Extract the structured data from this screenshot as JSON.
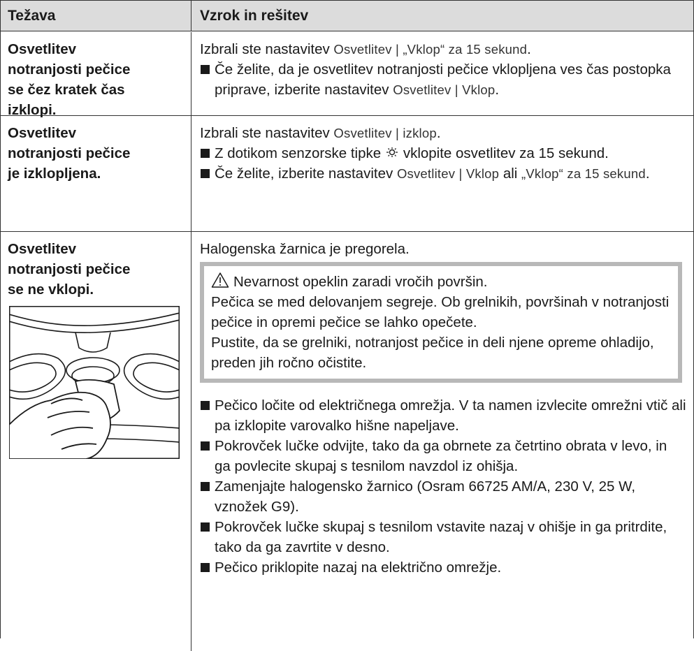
{
  "header": {
    "problem": "Težava",
    "solution": "Vzrok in rešitev"
  },
  "rows": [
    {
      "problem": [
        "Osvetlitev",
        "notranjosti pečice",
        "se čez kratek čas",
        "izklopi."
      ],
      "cause": [
        "Izbrali ste nastavitev ",
        "Osvetlitev | „Vklop“ za 15 sekund",
        "."
      ],
      "steps": [
        [
          "Če želite, da je osvetlitev notranjosti pečice vklopljena ves čas postopka priprave, izberite nastavitev ",
          "Osvetlitev | Vklop",
          "."
        ]
      ]
    },
    {
      "problem": [
        "Osvetlitev",
        "notranjosti pečice",
        "je izklopljena."
      ],
      "cause": [
        "Izbrali ste nastavitev ",
        "Osvetlitev | izklop",
        "."
      ],
      "steps": [
        [
          "Z dotikom senzorske tipke ",
          "vklopite osvetlitev za 15 sekund."
        ],
        [
          "Če želite, izberite nastavitev ",
          "Osvetlitev | Vklop",
          " ali ",
          "„Vklop“ za 15 sekund",
          "."
        ]
      ]
    },
    {
      "problem": [
        "Osvetlitev",
        "notranjosti pečice",
        "se ne vklopi."
      ],
      "cause": "Halogenska žarnica je pregorela.",
      "warning": {
        "title": "Nevarnost opeklin zaradi vročih površin.",
        "paragraphs": [
          "Pečica se med delovanjem segreje. Ob grelnikih, površinah v notranjosti pečice in opremi pečice se lahko opečete.",
          "Pustite, da se grelniki, notranjost pečice in deli njene opreme ohladijo, preden jih ročno očistite."
        ]
      },
      "steps": [
        "Pečico ločite od električnega omrežja. V ta namen izvlecite omrežni vtič ali pa izklopite varovalko hišne napeljave.",
        "Pokrovček lučke odvijte, tako da ga obrnete za četrtino obrata v levo, in ga povlecite skupaj s tesnilom navzdol iz ohišja.",
        "Zamenjajte halogensko žarnico (Osram 66725 AM/A, 230 V, 25 W, vznožek G9).",
        "Pokrovček lučke skupaj s tesnilom vstavite nazaj v ohišje in ga pritrdite, tako da ga zavrtite v desno.",
        "Pečico priklopite nazaj na električno omrežje."
      ]
    }
  ]
}
